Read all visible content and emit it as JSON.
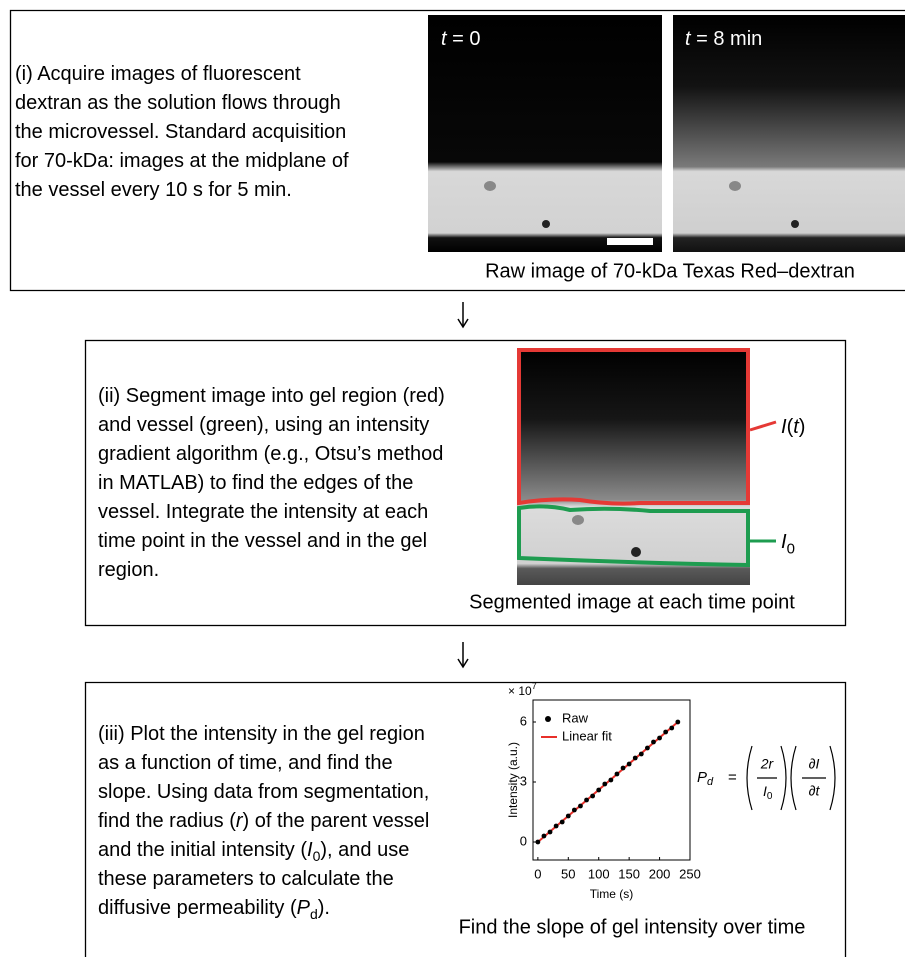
{
  "panels": [
    {
      "text": [
        [
          "(i) Acquire images of fluorescent"
        ],
        [
          "dextran as the solution flows through"
        ],
        [
          "the microvessel. Standard acquisition"
        ],
        [
          "for 70-kDa: images at the midplane of"
        ],
        [
          "the vessel every 10 s for 5 min."
        ]
      ],
      "images": [
        {
          "label": [
            {
              "text": "t",
              "style": "italic"
            },
            " = 0"
          ]
        },
        {
          "label": [
            {
              "text": "t",
              "style": "italic"
            },
            " = 8 min"
          ]
        }
      ],
      "caption": "Raw image of 70-kDa Texas Red–dextran"
    },
    {
      "text": [
        [
          "(ii) Segment image into gel region (red)"
        ],
        [
          "and vessel (green), using an intensity"
        ],
        [
          "gradient algorithm (e.g., Otsu’s method"
        ],
        [
          "in MATLAB) to find the edges of the"
        ],
        [
          "vessel. Integrate the intensity at each"
        ],
        [
          "time point in the vessel and in the gel"
        ],
        [
          "region."
        ]
      ],
      "labels": [
        [
          {
            "text": "I",
            "style": "italic"
          },
          "(",
          {
            "text": "t",
            "style": "italic"
          },
          ")"
        ],
        [
          {
            "text": "I",
            "style": "italic"
          },
          {
            "text": "0",
            "style": "sub"
          }
        ]
      ],
      "caption": "Segmented image at each time point"
    },
    {
      "text": [
        [
          "(iii) Plot the intensity in the gel region"
        ],
        [
          "as a function of time, and find the"
        ],
        [
          "slope. Using data from segmentation,"
        ],
        [
          "find the radius (",
          {
            "text": "r",
            "style": "italic"
          },
          ") of the parent vessel"
        ],
        [
          "and the initial intensity (",
          {
            "text": "I",
            "style": "italic"
          },
          {
            "text": "0",
            "style": "sub"
          },
          "), and use"
        ],
        [
          "these parameters to calculate the"
        ],
        [
          "diffusive permeability (",
          {
            "text": "P",
            "style": "italic"
          },
          {
            "text": "d",
            "style": "sub"
          },
          ")."
        ]
      ],
      "plot": {
        "type": "scatter",
        "x_label": "Time (s)",
        "y_label": "Intensity (a.u.)",
        "y_multiplier": {
          "base": "× 10",
          "exp": "7"
        },
        "xlim": [
          -8,
          250
        ],
        "ylim": [
          -0.9,
          7.1
        ],
        "xticks": [
          0,
          50,
          100,
          150,
          200,
          250
        ],
        "yticks": [
          0,
          3,
          6
        ],
        "x": [
          0,
          10,
          20,
          30,
          40,
          50,
          60,
          70,
          80,
          90,
          100,
          110,
          120,
          130,
          140,
          150,
          160,
          170,
          180,
          190,
          200,
          210,
          220,
          230
        ],
        "series": [
          {
            "name": "Raw",
            "color": "#000000",
            "values": [
              0,
              0.3,
              0.5,
              0.8,
              1.0,
              1.3,
              1.6,
              1.8,
              2.1,
              2.3,
              2.6,
              2.9,
              3.1,
              3.4,
              3.7,
              3.9,
              4.2,
              4.4,
              4.7,
              5.0,
              5.2,
              5.5,
              5.7,
              6.0
            ]
          },
          {
            "name": "Linear fit",
            "color": "#e8302a",
            "x": [
              0,
              230
            ],
            "values": [
              0,
              6.0
            ]
          }
        ]
      },
      "formula": {
        "lhs": "P",
        "lhs_sub": "d",
        "eq": "=",
        "num1": "2r",
        "den1": "I",
        "den1_sub": "0",
        "num2": "∂I",
        "den2": "∂t"
      },
      "caption": "Find the slope of gel intensity over time"
    }
  ]
}
